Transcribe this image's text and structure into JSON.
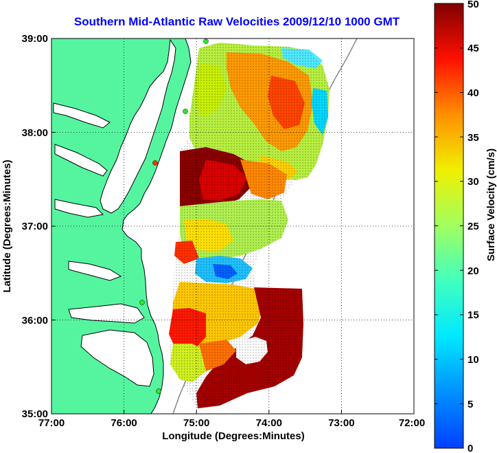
{
  "title": "Southern Mid-Atlantic Raw Velocities 2009/12/10 1000 GMT",
  "axes": {
    "xlabel": "Longitude (Degrees:Minutes)",
    "ylabel": "Latitude (Degrees:Minutes)",
    "xticks": [
      "77:00",
      "76:00",
      "75:00",
      "74:00",
      "73:00",
      "72:00"
    ],
    "yticks": [
      "39:00",
      "38:00",
      "37:00",
      "36:00",
      "35:00"
    ],
    "grid": "dotted"
  },
  "colorbar": {
    "label": "Surface Velocity (cm/s)",
    "ticks": [
      "50",
      "45",
      "40",
      "35",
      "30",
      "25",
      "20",
      "15",
      "10",
      "5",
      "0"
    ],
    "min": 0,
    "max": 50,
    "colormap": "jet"
  },
  "colors": {
    "land": "#55f5a0",
    "coastline": "#000000",
    "title": "#0000ff",
    "station": "#2ee62e"
  }
}
